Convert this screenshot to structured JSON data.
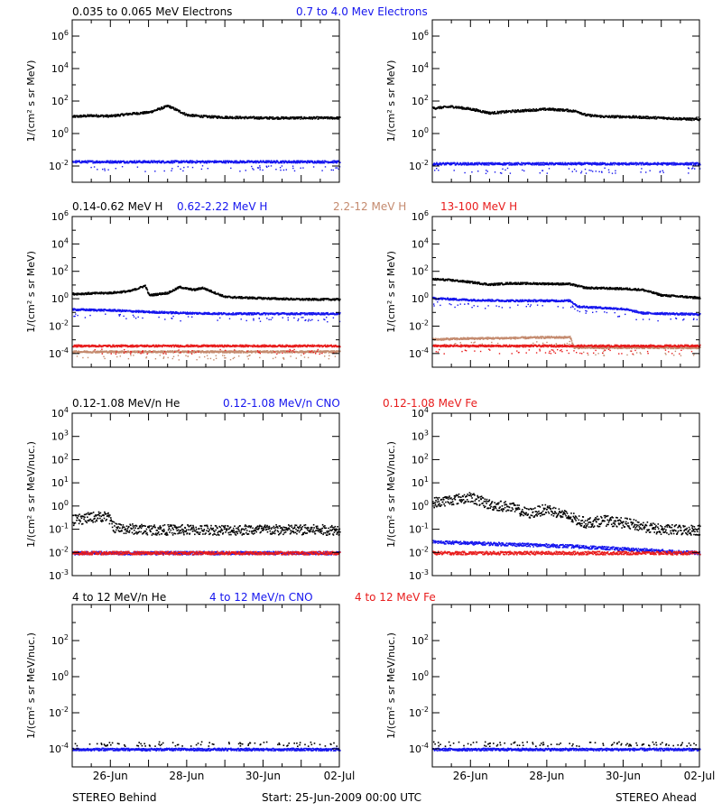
{
  "footer": {
    "left": "STEREO Behind",
    "center": "Start: 25-Jun-2009 00:00 UTC",
    "right": "STEREO Ahead"
  },
  "colors": {
    "black": "#000000",
    "blue": "#1515ee",
    "tan": "#c48a6e",
    "red": "#e81c1c"
  },
  "x_axis": {
    "start": "2009-06-25",
    "end": "2009-07-02",
    "tick_labels": [
      "26-Jun",
      "28-Jun",
      "30-Jun",
      "02-Jul"
    ],
    "tick_dates": [
      "2009-06-26",
      "2009-06-28",
      "2009-06-30",
      "2009-07-02"
    ]
  },
  "rows": [
    {
      "id": "electrons",
      "headers": [
        {
          "text": "0.035 to 0.065 MeV Electrons",
          "color": "#000000"
        },
        {
          "text": "0.7 to 4.0 Mev Electrons",
          "color": "#1515ee"
        }
      ]
    },
    {
      "id": "protons",
      "headers": [
        {
          "text": "0.14-0.62 MeV H",
          "color": "#000000"
        },
        {
          "text": "0.62-2.22 MeV H",
          "color": "#1515ee"
        },
        {
          "text": "2.2-12 MeV H",
          "color": "#c48a6e"
        },
        {
          "text": "13-100 MeV H",
          "color": "#e81c1c"
        }
      ]
    },
    {
      "id": "low-heavy",
      "headers": [
        {
          "text": "0.12-1.08 MeV/n He",
          "color": "#000000"
        },
        {
          "text": "0.12-1.08 MeV/n CNO",
          "color": "#1515ee"
        },
        {
          "text": "0.12-1.08 MeV Fe",
          "color": "#e81c1c"
        }
      ]
    },
    {
      "id": "high-heavy",
      "headers": [
        {
          "text": "4 to 12 MeV/n He",
          "color": "#000000"
        },
        {
          "text": "4 to 12 MeV/n CNO",
          "color": "#1515ee"
        },
        {
          "text": "4 to 12 MeV Fe",
          "color": "#e81c1c"
        }
      ]
    }
  ],
  "chart_data": [
    {
      "type": "scatter",
      "panel": "electrons-behind",
      "log_y": true,
      "ylabel": "1/(cm² s sr MeV)",
      "ylim_exp": [
        -3,
        7
      ],
      "ytick_labels": [
        "10-2",
        "100",
        "102",
        "104",
        "106"
      ],
      "ytick_exps": [
        -2,
        0,
        2,
        4,
        6
      ],
      "series": [
        {
          "name": "0.035 to 0.065 MeV Electrons",
          "color": "#000000",
          "x": [
            0,
            0.5,
            1,
            1.5,
            2,
            2.5,
            3,
            3.5,
            4,
            5,
            6,
            7
          ],
          "y": [
            12,
            14,
            13,
            18,
            22,
            55,
            15,
            12,
            11,
            10,
            10,
            10
          ]
        },
        {
          "name": "0.7 to 4.0 Mev Electrons",
          "color": "#1515ee",
          "x": [
            0,
            7
          ],
          "y": [
            0.02,
            0.02
          ]
        }
      ]
    },
    {
      "type": "scatter",
      "panel": "electrons-ahead",
      "log_y": true,
      "ylabel": "1/(cm² s sr MeV)",
      "ylim_exp": [
        -3,
        7
      ],
      "ytick_labels": [
        "10-2",
        "100",
        "102",
        "104",
        "106"
      ],
      "ytick_exps": [
        -2,
        0,
        2,
        4,
        6
      ],
      "series": [
        {
          "name": "0.035 to 0.065 MeV Electrons",
          "color": "#000000",
          "x": [
            0,
            0.5,
            1,
            1.5,
            2,
            3,
            3.5,
            3.8,
            4,
            4.5,
            5,
            6,
            7
          ],
          "y": [
            40,
            50,
            35,
            20,
            25,
            35,
            30,
            25,
            15,
            12,
            12,
            10,
            8
          ]
        },
        {
          "name": "0.7 to 4.0 Mev Electrons",
          "color": "#1515ee",
          "x": [
            0,
            7
          ],
          "y": [
            0.015,
            0.015
          ]
        }
      ]
    },
    {
      "type": "scatter",
      "panel": "protons-behind",
      "log_y": true,
      "ylabel": "1/(cm² s sr MeV)",
      "ylim_exp": [
        -5,
        6
      ],
      "ytick_labels": [
        "10-4",
        "10-2",
        "100",
        "102",
        "104",
        "106"
      ],
      "ytick_exps": [
        -4,
        -2,
        0,
        2,
        4,
        6
      ],
      "series": [
        {
          "name": "0.14-0.62 MeV H",
          "color": "#000000",
          "x": [
            0,
            1,
            1.5,
            1.9,
            2,
            2.5,
            2.8,
            3,
            3.2,
            3.4,
            4,
            5,
            6,
            7
          ],
          "y": [
            2.5,
            3,
            4,
            10,
            2,
            3,
            8,
            6,
            5,
            7,
            1.5,
            1.2,
            1,
            1
          ]
        },
        {
          "name": "0.62-2.22 MeV H",
          "color": "#1515ee",
          "x": [
            0,
            1,
            2,
            3,
            4,
            5,
            6,
            7
          ],
          "y": [
            0.18,
            0.16,
            0.12,
            0.1,
            0.09,
            0.09,
            0.09,
            0.09
          ]
        },
        {
          "name": "2.2-12 MeV H",
          "color": "#c48a6e",
          "x": [
            0,
            7
          ],
          "y": [
            0.00015,
            0.00015
          ]
        },
        {
          "name": "13-100 MeV H",
          "color": "#e81c1c",
          "x": [
            0,
            7
          ],
          "y": [
            0.0004,
            0.0004
          ]
        }
      ]
    },
    {
      "type": "scatter",
      "panel": "protons-ahead",
      "log_y": true,
      "ylabel": "1/(cm² s sr MeV)",
      "ylim_exp": [
        -5,
        6
      ],
      "ytick_labels": [
        "10-4",
        "10-2",
        "100",
        "102",
        "104",
        "106"
      ],
      "ytick_exps": [
        -4,
        -2,
        0,
        2,
        4,
        6
      ],
      "series": [
        {
          "name": "0.14-0.62 MeV H",
          "color": "#000000",
          "x": [
            0,
            0.5,
            1,
            1.5,
            2,
            3,
            3.6,
            4,
            5,
            5.5,
            6,
            7
          ],
          "y": [
            30,
            25,
            18,
            12,
            15,
            14,
            13,
            7,
            6,
            5,
            2,
            1.3
          ]
        },
        {
          "name": "0.62-2.22 MeV H",
          "color": "#1515ee",
          "x": [
            0,
            1,
            2,
            3,
            3.6,
            3.8,
            5,
            5.5,
            7
          ],
          "y": [
            1.2,
            0.9,
            0.8,
            0.8,
            0.8,
            0.3,
            0.2,
            0.1,
            0.08
          ]
        },
        {
          "name": "2.2-12 MeV H",
          "color": "#c48a6e",
          "x": [
            0,
            1,
            2,
            3,
            3.6,
            3.7,
            7
          ],
          "y": [
            0.0012,
            0.0014,
            0.0015,
            0.0017,
            0.0017,
            0.0003,
            0.0003
          ]
        },
        {
          "name": "13-100 MeV H",
          "color": "#e81c1c",
          "x": [
            0,
            7
          ],
          "y": [
            0.0004,
            0.0004
          ]
        }
      ]
    },
    {
      "type": "scatter",
      "panel": "low-heavy-behind",
      "log_y": true,
      "ylabel": "1/(cm² s sr MeV/nuc.)",
      "ylim_exp": [
        -3,
        4
      ],
      "ytick_labels": [
        "10-3",
        "10-2",
        "10-1",
        "100",
        "101",
        "102",
        "103",
        "104"
      ],
      "ytick_exps": [
        -3,
        -2,
        -1,
        0,
        1,
        2,
        3,
        4
      ],
      "series": [
        {
          "name": "0.12-1.08 MeV/n He",
          "color": "#000000",
          "x": [
            0,
            0.5,
            0.9,
            1.1,
            2,
            3,
            4,
            5,
            6,
            7
          ],
          "y": [
            0.25,
            0.35,
            0.4,
            0.12,
            0.1,
            0.1,
            0.1,
            0.1,
            0.1,
            0.1
          ]
        },
        {
          "name": "0.12-1.08 MeV/n CNO",
          "color": "#1515ee",
          "x": [
            0,
            7
          ],
          "y": [
            0.01,
            0.01
          ]
        },
        {
          "name": "0.12-1.08 MeV Fe",
          "color": "#e81c1c",
          "x": [
            0,
            7
          ],
          "y": [
            0.01,
            0.01
          ]
        }
      ]
    },
    {
      "type": "scatter",
      "panel": "low-heavy-ahead",
      "log_y": true,
      "ylabel": "1/(cm² s sr MeV/nuc.)",
      "ylim_exp": [
        -3,
        4
      ],
      "ytick_labels": [
        "10-3",
        "10-2",
        "10-1",
        "100",
        "101",
        "102",
        "103",
        "104"
      ],
      "ytick_exps": [
        -3,
        -2,
        -1,
        0,
        1,
        2,
        3,
        4
      ],
      "series": [
        {
          "name": "0.12-1.08 MeV/n He",
          "color": "#000000",
          "x": [
            0,
            0.5,
            1,
            1.5,
            2,
            2.5,
            3,
            3.5,
            4,
            4.5,
            5,
            6,
            7
          ],
          "y": [
            1.5,
            2,
            2.5,
            1.2,
            1,
            0.5,
            0.8,
            0.4,
            0.2,
            0.25,
            0.2,
            0.1,
            0.1
          ]
        },
        {
          "name": "0.12-1.08 MeV/n CNO",
          "color": "#1515ee",
          "x": [
            0,
            3.5,
            7
          ],
          "y": [
            0.03,
            0.02,
            0.01
          ]
        },
        {
          "name": "0.12-1.08 MeV Fe",
          "color": "#e81c1c",
          "x": [
            0,
            7
          ],
          "y": [
            0.01,
            0.01
          ]
        }
      ]
    },
    {
      "type": "scatter",
      "panel": "high-heavy-behind",
      "log_y": true,
      "ylabel": "1/(cm² s sr MeV/nuc.)",
      "ylim_exp": [
        -5,
        4
      ],
      "ytick_labels": [
        "10-4",
        "10-2",
        "100",
        "102"
      ],
      "ytick_exps": [
        -4,
        -2,
        0,
        2
      ],
      "series": [
        {
          "name": "4 to 12 MeV/n He",
          "color": "#000000",
          "x": [
            0,
            7
          ],
          "y": [
            0.0002,
            0.0002
          ]
        },
        {
          "name": "4 to 12 MeV/n CNO",
          "color": "#1515ee",
          "x": [
            0,
            7
          ],
          "y": [
            0.0001,
            0.0001
          ]
        }
      ]
    },
    {
      "type": "scatter",
      "panel": "high-heavy-ahead",
      "log_y": true,
      "ylabel": "1/(cm² s sr MeV/nuc.)",
      "ylim_exp": [
        -5,
        4
      ],
      "ytick_labels": [
        "10-4",
        "10-2",
        "100",
        "102"
      ],
      "ytick_exps": [
        -4,
        -2,
        0,
        2
      ],
      "series": [
        {
          "name": "4 to 12 MeV/n He",
          "color": "#000000",
          "x": [
            0,
            7
          ],
          "y": [
            0.0002,
            0.0002
          ]
        },
        {
          "name": "4 to 12 MeV/n CNO",
          "color": "#1515ee",
          "x": [
            0,
            7
          ],
          "y": [
            0.0001,
            0.0001
          ]
        }
      ]
    }
  ]
}
